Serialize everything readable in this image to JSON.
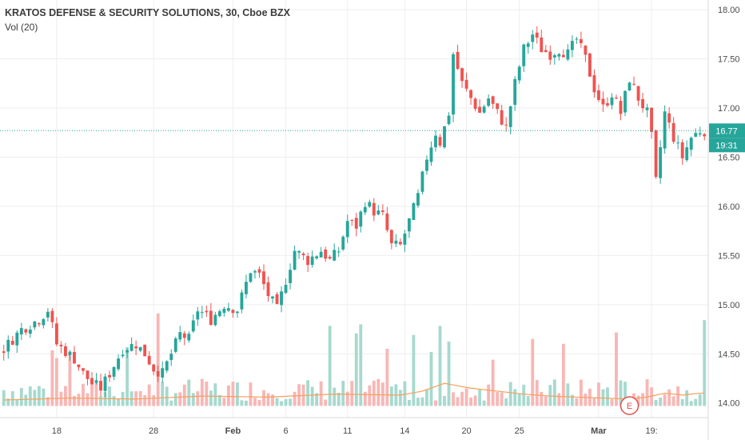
{
  "header": {
    "title": "KRATOS DEFENSE & SECURITY SOLUTIONS, 30, Cboe BZX",
    "indicator": "Vol (20)"
  },
  "colors": {
    "up": "#26a69a",
    "down": "#ef5350",
    "vol_up": "#a7d9cf",
    "vol_down": "#f7b7b5",
    "ma": "#f5a05a",
    "price_line": "#26a69a",
    "grid": "#eeeeee",
    "axis_text": "#4a4a4a",
    "earnings": "#e0504d"
  },
  "chart_data": {
    "type": "candlestick",
    "symbol": "KRATOS DEFENSE & SECURITY SOLUTIONS",
    "interval": "30",
    "exchange": "Cboe BZX",
    "ylim": [
      13.9,
      18.05
    ],
    "yticks": [
      14.0,
      14.5,
      15.0,
      15.5,
      16.0,
      16.5,
      17.0,
      17.5,
      18.0
    ],
    "xticks": [
      "18",
      "28",
      "Feb",
      "6",
      "11",
      "14",
      "20",
      "25",
      "Mar",
      "19:"
    ],
    "last_price": "16.77",
    "countdown": "19:31",
    "earnings_marker": "E",
    "close_path": [
      [
        0,
        14.55
      ],
      [
        4,
        14.75
      ],
      [
        8,
        14.85
      ],
      [
        10,
        14.95
      ],
      [
        12,
        14.6
      ],
      [
        16,
        14.45
      ],
      [
        18,
        14.3
      ],
      [
        20,
        14.2
      ],
      [
        22,
        14.15
      ],
      [
        24,
        14.3
      ],
      [
        27,
        14.55
      ],
      [
        30,
        14.6
      ],
      [
        32,
        14.5
      ],
      [
        34,
        14.35
      ],
      [
        36,
        14.3
      ],
      [
        38,
        14.5
      ],
      [
        40,
        14.7
      ],
      [
        42,
        14.65
      ],
      [
        44,
        14.95
      ],
      [
        47,
        14.85
      ],
      [
        50,
        15.0
      ],
      [
        53,
        14.95
      ],
      [
        56,
        15.35
      ],
      [
        58,
        15.3
      ],
      [
        60,
        15.1
      ],
      [
        62,
        14.95
      ],
      [
        64,
        15.25
      ],
      [
        66,
        15.55
      ],
      [
        69,
        15.45
      ],
      [
        72,
        15.55
      ],
      [
        74,
        15.45
      ],
      [
        76,
        15.55
      ],
      [
        78,
        15.85
      ],
      [
        80,
        15.8
      ],
      [
        82,
        16.05
      ],
      [
        84,
        15.95
      ],
      [
        86,
        15.9
      ],
      [
        88,
        15.6
      ],
      [
        90,
        15.6
      ],
      [
        92,
        15.85
      ],
      [
        94,
        16.1
      ],
      [
        96,
        16.5
      ],
      [
        98,
        16.75
      ],
      [
        99,
        16.65
      ],
      [
        100,
        16.8
      ],
      [
        101,
        16.95
      ],
      [
        102,
        17.55
      ],
      [
        104,
        17.25
      ],
      [
        106,
        17.1
      ],
      [
        108,
        16.95
      ],
      [
        110,
        17.1
      ],
      [
        112,
        16.95
      ],
      [
        114,
        16.8
      ],
      [
        116,
        17.25
      ],
      [
        118,
        17.6
      ],
      [
        120,
        17.75
      ],
      [
        122,
        17.6
      ],
      [
        124,
        17.55
      ],
      [
        126,
        17.6
      ],
      [
        128,
        17.55
      ],
      [
        130,
        17.7
      ],
      [
        132,
        17.5
      ],
      [
        134,
        17.2
      ],
      [
        136,
        17.0
      ],
      [
        138,
        17.15
      ],
      [
        140,
        16.95
      ],
      [
        142,
        17.3
      ],
      [
        144,
        17.1
      ],
      [
        146,
        16.95
      ],
      [
        147,
        16.7
      ],
      [
        148,
        16.25
      ],
      [
        150,
        16.95
      ],
      [
        152,
        16.7
      ],
      [
        154,
        16.5
      ],
      [
        156,
        16.7
      ],
      [
        158,
        16.77
      ]
    ],
    "volume_ma_path": [
      [
        0,
        14.03
      ],
      [
        15,
        14.05
      ],
      [
        30,
        14.04
      ],
      [
        45,
        14.07
      ],
      [
        60,
        14.06
      ],
      [
        75,
        14.09
      ],
      [
        90,
        14.08
      ],
      [
        95,
        14.12
      ],
      [
        100,
        14.2
      ],
      [
        106,
        14.15
      ],
      [
        112,
        14.12
      ],
      [
        118,
        14.09
      ],
      [
        124,
        14.07
      ],
      [
        130,
        14.06
      ],
      [
        136,
        14.05
      ],
      [
        142,
        14.04
      ],
      [
        146,
        14.06
      ],
      [
        150,
        14.1
      ],
      [
        154,
        14.08
      ],
      [
        158,
        14.1
      ]
    ]
  }
}
